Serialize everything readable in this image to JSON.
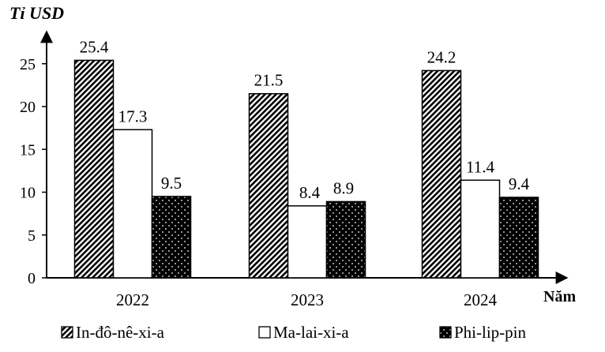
{
  "chart_data": {
    "type": "bar",
    "ylabel": "Tỉ USD",
    "xlabel": "Năm",
    "categories": [
      "2022",
      "2023",
      "2024"
    ],
    "series": [
      {
        "name": "In-đô-nê-xi-a",
        "values": [
          25.4,
          21.5,
          24.2
        ],
        "pattern": "diagonal-hatch"
      },
      {
        "name": "Ma-lai-xi-a",
        "values": [
          17.3,
          8.4,
          11.4
        ],
        "pattern": "white"
      },
      {
        "name": "Phi-lip-pin",
        "values": [
          9.5,
          8.9,
          9.4
        ],
        "pattern": "dotted-black"
      }
    ],
    "yticks": [
      0,
      5,
      10,
      15,
      20,
      25
    ],
    "ylim": [
      0,
      30
    ],
    "grid": false,
    "legend": "bottom"
  }
}
